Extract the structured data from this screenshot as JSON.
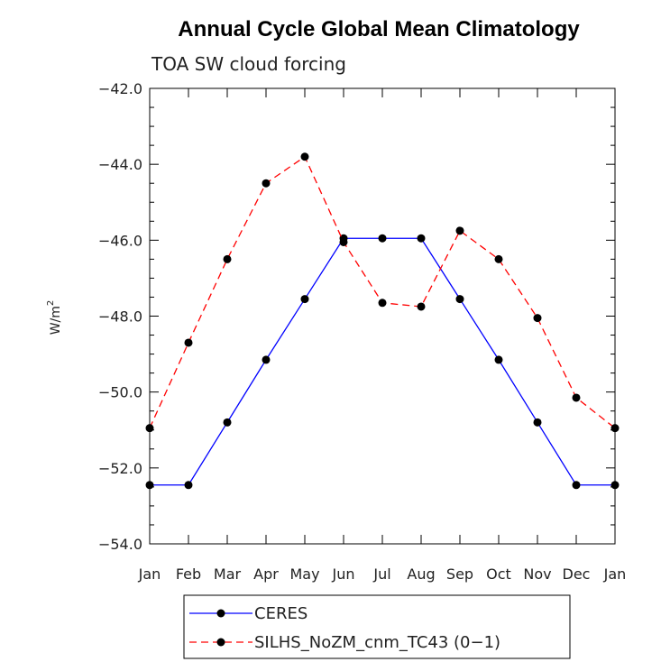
{
  "chart_data": {
    "type": "line",
    "title": "Annual Cycle Global Mean Climatology",
    "subtitle": "TOA SW cloud forcing",
    "xlabel": "",
    "ylabel": "W/m",
    "ylabel_superscript": "2",
    "categories": [
      "Jan",
      "Feb",
      "Mar",
      "Apr",
      "May",
      "Jun",
      "Jul",
      "Aug",
      "Sep",
      "Oct",
      "Nov",
      "Dec",
      "Jan"
    ],
    "ylim": [
      -54.0,
      -42.0
    ],
    "yticks": [
      -42.0,
      -44.0,
      -46.0,
      -48.0,
      -50.0,
      -52.0,
      -54.0
    ],
    "ytick_labels": [
      "−42.0",
      "−44.0",
      "−46.0",
      "−48.0",
      "−50.0",
      "−52.0",
      "−54.0"
    ],
    "grid": false,
    "legend_position": "bottom-center",
    "series": [
      {
        "name": "CERES",
        "color": "#0000ff",
        "line_style": "solid",
        "marker": "circle",
        "values": [
          -52.45,
          -52.45,
          -50.8,
          -49.15,
          -47.55,
          -45.95,
          -45.95,
          -45.95,
          -47.55,
          -49.15,
          -50.8,
          -52.45,
          -52.45
        ]
      },
      {
        "name": "SILHS_NoZM_cnm_TC43 (0−1)",
        "color": "#ff0000",
        "line_style": "dashed",
        "marker": "circle",
        "values": [
          -50.95,
          -48.7,
          -46.5,
          -44.5,
          -43.8,
          -46.05,
          -47.65,
          -47.75,
          -45.75,
          -46.5,
          -48.05,
          -50.15,
          -50.95
        ]
      }
    ]
  }
}
